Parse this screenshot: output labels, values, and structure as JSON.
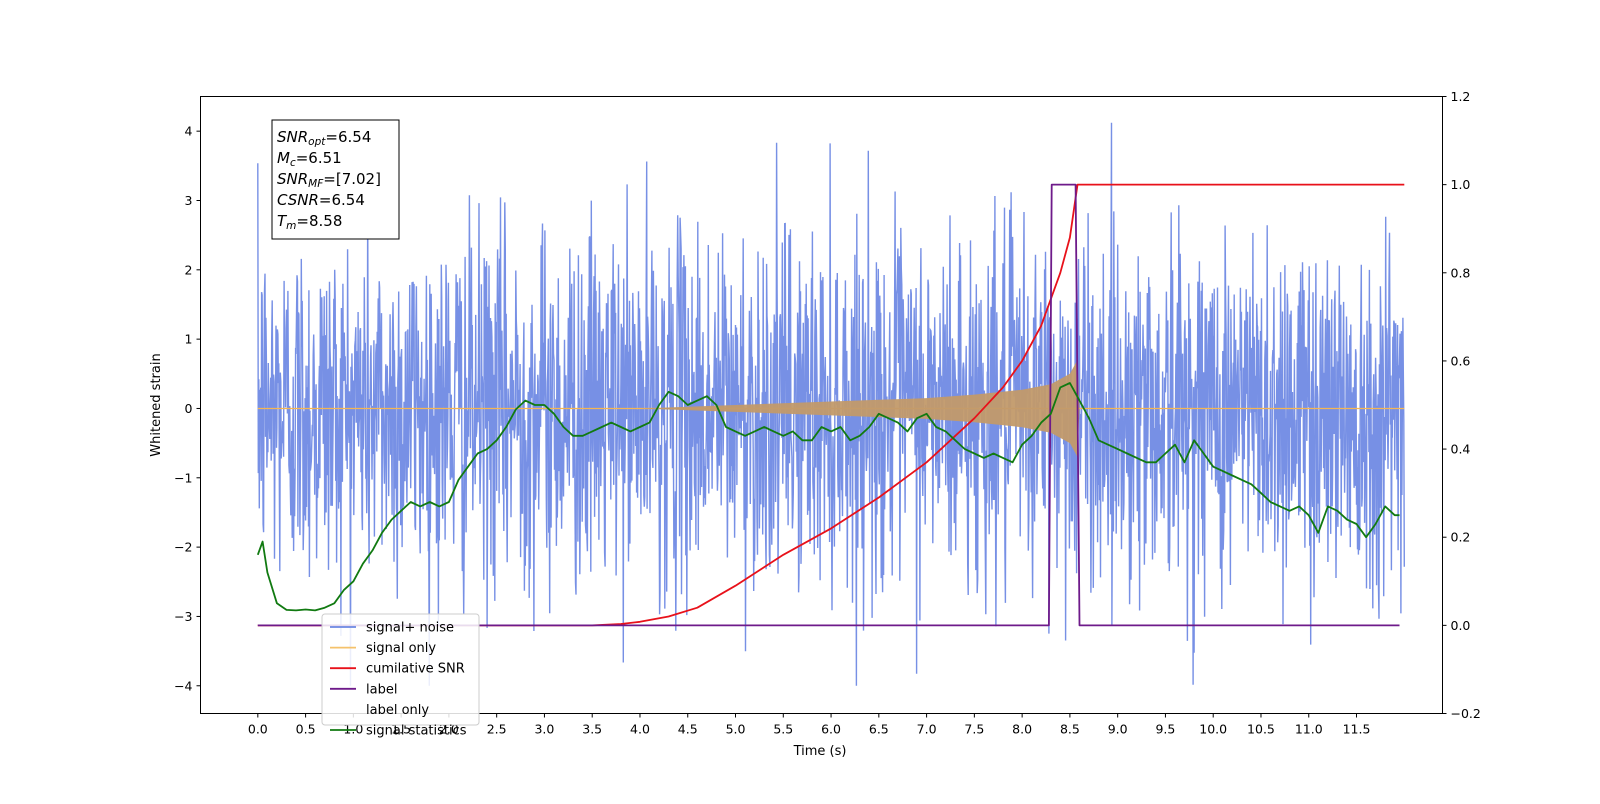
{
  "chart_data": {
    "type": "line",
    "xlabel": "Time (s)",
    "ylabel": "Whitened strain",
    "ylabel_right": "",
    "xlim": [
      -0.6,
      12.4
    ],
    "ylim": [
      -4.4,
      4.5
    ],
    "ylim_right": [
      -0.2,
      1.2
    ],
    "x_ticks": [
      0.0,
      0.5,
      1.0,
      1.5,
      2.0,
      2.5,
      3.0,
      3.5,
      4.0,
      4.5,
      5.0,
      5.5,
      6.0,
      6.5,
      7.0,
      7.5,
      8.0,
      8.5,
      9.0,
      9.5,
      10.0,
      10.5,
      11.0,
      11.5
    ],
    "x_tick_labels": [
      "0.0",
      "0.5",
      "1.0",
      "1.5",
      "2.0",
      "2.5",
      "3.0",
      "3.5",
      "4.0",
      "4.5",
      "5.0",
      "5.5",
      "6.0",
      "6.5",
      "7.0",
      "7.5",
      "8.0",
      "8.5",
      "9.0",
      "9.5",
      "10.0",
      "10.5",
      "11.0",
      "11.5"
    ],
    "y_ticks": [
      -4,
      -3,
      -2,
      -1,
      0,
      1,
      2,
      3,
      4
    ],
    "y_tick_labels": [
      "−4",
      "−3",
      "−2",
      "−1",
      "0",
      "1",
      "2",
      "3",
      "4"
    ],
    "y_ticks_right": [
      -0.2,
      0.0,
      0.2,
      0.4,
      0.6,
      0.8,
      1.0,
      1.2
    ],
    "y_tick_labels_right": [
      "−0.2",
      "0.0",
      "0.2",
      "0.4",
      "0.6",
      "0.8",
      "1.0",
      "1.2"
    ],
    "grid": false,
    "legend_position": "bottom-left",
    "colors": {
      "signal_noise": "#6b87e3",
      "signal_only": "#f5b653",
      "cumulative_snr": "#e8111a",
      "label": "#6e1a8a",
      "label_only": "#f5b653",
      "signal_statistics": "#117a11"
    },
    "legend": [
      {
        "name": "signal+ noise",
        "color": "#6b87e3"
      },
      {
        "name": "signal only",
        "color": "#f5c26b"
      },
      {
        "name": "cumilative SNR",
        "color": "#e8111a"
      },
      {
        "name": "label",
        "color": "#6e1a8a"
      },
      {
        "name": "label only",
        "color": "#ffffff"
      },
      {
        "name": "signal statistics",
        "color": "#117a11"
      }
    ],
    "annotation": {
      "lines": [
        {
          "sym": "SNR",
          "sub": "opt",
          "value": "=6.54"
        },
        {
          "sym": "M",
          "sub": "c",
          "value": "=6.51"
        },
        {
          "sym": "SNR",
          "sub": "MF",
          "value": "=[7.02]"
        },
        {
          "sym": "CSNR",
          "sub": "",
          "value": "=6.54"
        },
        {
          "sym": "T",
          "sub": "m",
          "value": "=8.58"
        }
      ]
    },
    "noise_envelope": {
      "x": [
        0.0,
        12.0
      ],
      "approx_range": [
        -4.0,
        4.12
      ],
      "typical_band": [
        -1.7,
        1.7
      ]
    },
    "signal_only_envelope": {
      "x": [
        4.0,
        5.0,
        6.0,
        7.0,
        7.5,
        8.0,
        8.3,
        8.5,
        8.58,
        8.6
      ],
      "amplitude": [
        0.0,
        0.05,
        0.1,
        0.15,
        0.2,
        0.27,
        0.35,
        0.5,
        0.7,
        0.0
      ]
    },
    "series": [
      {
        "name": "cumilative SNR",
        "axis": "right",
        "x": [
          0.0,
          3.5,
          3.8,
          4.0,
          4.3,
          4.6,
          5.0,
          5.5,
          6.0,
          6.5,
          7.0,
          7.5,
          7.8,
          8.0,
          8.2,
          8.4,
          8.5,
          8.58,
          12.0
        ],
        "values": [
          0.0,
          0.0,
          0.003,
          0.008,
          0.02,
          0.04,
          0.09,
          0.16,
          0.22,
          0.29,
          0.37,
          0.47,
          0.54,
          0.6,
          0.68,
          0.8,
          0.88,
          1.0,
          1.0
        ]
      },
      {
        "name": "label",
        "axis": "right",
        "x": [
          0.0,
          8.28,
          8.31,
          8.56,
          8.6,
          11.95
        ],
        "values": [
          0.0,
          0.0,
          1.0,
          1.0,
          0.0,
          0.0
        ]
      },
      {
        "name": "signal statistics",
        "axis": "right",
        "x": [
          0.0,
          0.05,
          0.1,
          0.2,
          0.3,
          0.4,
          0.5,
          0.6,
          0.7,
          0.8,
          0.9,
          1.0,
          1.1,
          1.2,
          1.3,
          1.4,
          1.5,
          1.6,
          1.7,
          1.8,
          1.9,
          2.0,
          2.1,
          2.2,
          2.3,
          2.4,
          2.5,
          2.6,
          2.7,
          2.8,
          2.9,
          3.0,
          3.1,
          3.2,
          3.3,
          3.4,
          3.5,
          3.6,
          3.7,
          3.8,
          3.9,
          4.0,
          4.1,
          4.2,
          4.3,
          4.4,
          4.5,
          4.6,
          4.7,
          4.8,
          4.9,
          5.0,
          5.1,
          5.2,
          5.3,
          5.4,
          5.5,
          5.6,
          5.7,
          5.8,
          5.9,
          6.0,
          6.1,
          6.2,
          6.3,
          6.4,
          6.5,
          6.6,
          6.7,
          6.8,
          6.9,
          7.0,
          7.1,
          7.2,
          7.3,
          7.4,
          7.5,
          7.6,
          7.7,
          7.8,
          7.9,
          8.0,
          8.1,
          8.2,
          8.3,
          8.4,
          8.5,
          8.6,
          8.7,
          8.8,
          8.9,
          9.0,
          9.1,
          9.2,
          9.3,
          9.4,
          9.5,
          9.6,
          9.7,
          9.8,
          9.9,
          10.0,
          10.1,
          10.2,
          10.3,
          10.4,
          10.5,
          10.6,
          10.7,
          10.8,
          10.9,
          11.0,
          11.1,
          11.2,
          11.3,
          11.4,
          11.5,
          11.6,
          11.7,
          11.8,
          11.9,
          11.95
        ],
        "values": [
          0.16,
          0.19,
          0.12,
          0.05,
          0.035,
          0.034,
          0.036,
          0.034,
          0.04,
          0.05,
          0.08,
          0.1,
          0.14,
          0.17,
          0.21,
          0.24,
          0.26,
          0.28,
          0.27,
          0.28,
          0.27,
          0.28,
          0.33,
          0.36,
          0.39,
          0.4,
          0.42,
          0.45,
          0.49,
          0.51,
          0.5,
          0.5,
          0.48,
          0.45,
          0.43,
          0.43,
          0.44,
          0.45,
          0.46,
          0.45,
          0.44,
          0.45,
          0.46,
          0.5,
          0.53,
          0.52,
          0.5,
          0.51,
          0.52,
          0.5,
          0.45,
          0.44,
          0.43,
          0.44,
          0.45,
          0.44,
          0.43,
          0.44,
          0.42,
          0.42,
          0.45,
          0.44,
          0.45,
          0.42,
          0.43,
          0.45,
          0.48,
          0.47,
          0.46,
          0.44,
          0.47,
          0.48,
          0.45,
          0.44,
          0.42,
          0.4,
          0.39,
          0.38,
          0.39,
          0.38,
          0.37,
          0.41,
          0.43,
          0.46,
          0.48,
          0.54,
          0.55,
          0.51,
          0.47,
          0.42,
          0.41,
          0.4,
          0.39,
          0.38,
          0.37,
          0.37,
          0.39,
          0.41,
          0.37,
          0.42,
          0.39,
          0.36,
          0.35,
          0.34,
          0.33,
          0.32,
          0.3,
          0.28,
          0.27,
          0.26,
          0.27,
          0.25,
          0.21,
          0.27,
          0.26,
          0.24,
          0.23,
          0.2,
          0.23,
          0.27,
          0.25,
          0.25
        ]
      }
    ]
  }
}
